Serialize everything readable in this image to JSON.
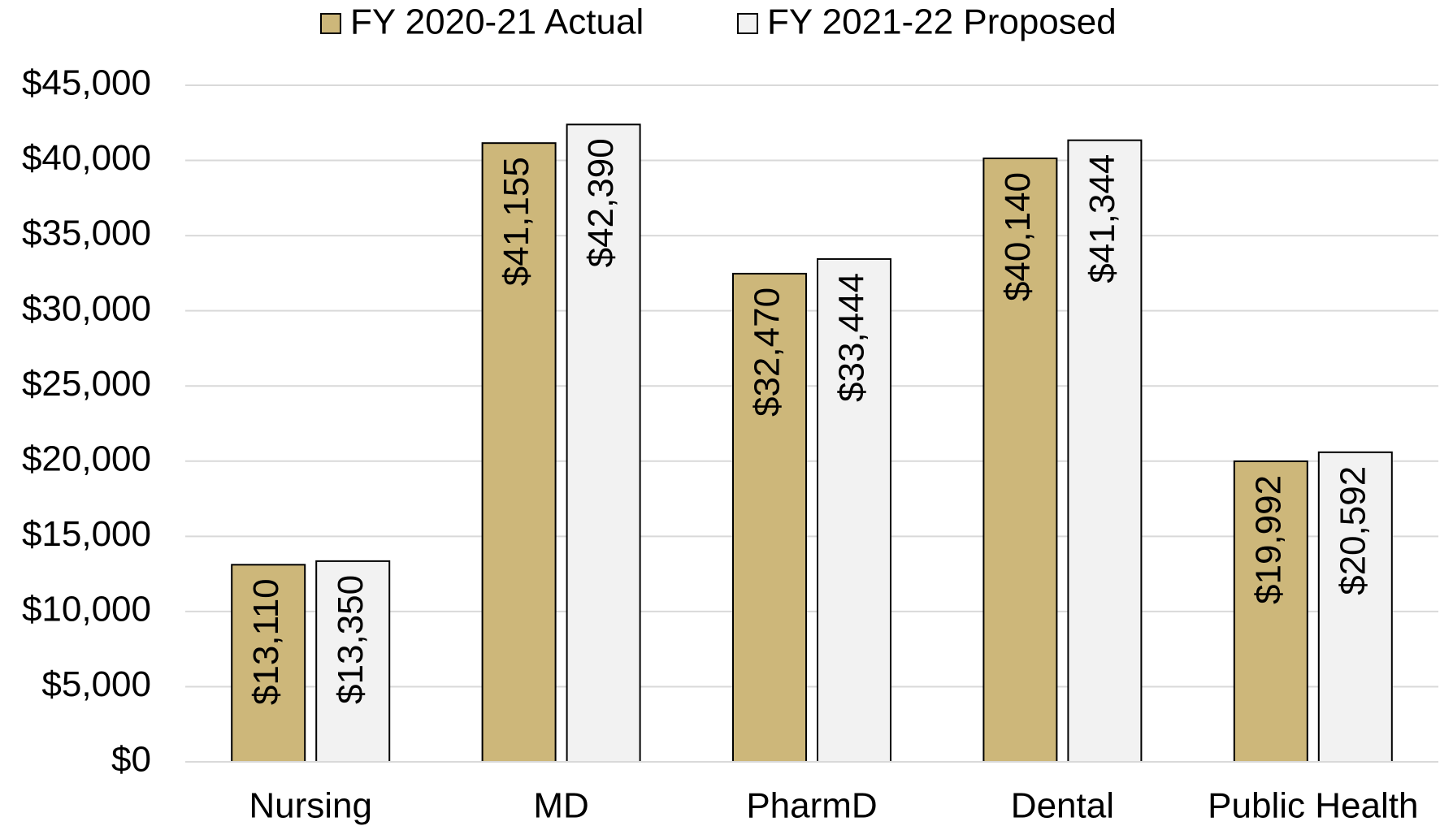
{
  "chart_data": {
    "type": "bar",
    "categories": [
      "Nursing",
      "MD",
      "PharmD",
      "Dental",
      "Public Health"
    ],
    "series": [
      {
        "name": "FY 2020-21 Actual",
        "color": "#CDB77A",
        "values": [
          13110,
          41155,
          32470,
          40140,
          19992
        ],
        "value_labels": [
          "$13,110",
          "$41,155",
          "$32,470",
          "$40,140",
          "$19,992"
        ]
      },
      {
        "name": "FY 2021-22 Proposed",
        "color": "#F2F2F2",
        "values": [
          13350,
          42390,
          33444,
          41344,
          20592
        ],
        "value_labels": [
          "$13,350",
          "$42,390",
          "$33,444",
          "$41,344",
          "$20,592"
        ]
      }
    ],
    "ylim": [
      0,
      45000
    ],
    "yticks": [
      {
        "value": 0,
        "label": "$0"
      },
      {
        "value": 5000,
        "label": "$5,000"
      },
      {
        "value": 10000,
        "label": "$10,000"
      },
      {
        "value": 15000,
        "label": "$15,000"
      },
      {
        "value": 20000,
        "label": "$20,000"
      },
      {
        "value": 25000,
        "label": "$25,000"
      },
      {
        "value": 30000,
        "label": "$30,000"
      },
      {
        "value": 35000,
        "label": "$35,000"
      },
      {
        "value": 40000,
        "label": "$40,000"
      },
      {
        "value": 45000,
        "label": "$45,000"
      }
    ],
    "grid": true,
    "legend": "top"
  }
}
